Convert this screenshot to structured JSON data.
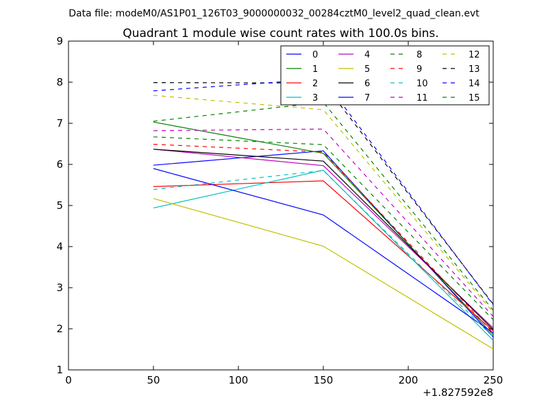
{
  "chart_data": {
    "type": "line",
    "suptitle": "Data file: modeM0/AS1P01_126T03_9000000032_00284cztM0_level2_quad_clean.evt",
    "title": "Quadrant 1 module wise count rates with 100.0s bins.",
    "xlabel": "",
    "ylabel": "",
    "x_offset_label": "+1.827592e8",
    "xlim": [
      0,
      250
    ],
    "ylim": [
      1,
      9
    ],
    "xticks": [
      "0",
      "50",
      "100",
      "150",
      "200",
      "250"
    ],
    "yticks": [
      "1",
      "2",
      "3",
      "4",
      "5",
      "6",
      "7",
      "8",
      "9"
    ],
    "x": [
      50,
      150,
      250
    ],
    "series": [
      {
        "name": "0",
        "color": "#0000ff",
        "dash": "solid",
        "values": [
          5.98,
          6.33,
          1.8
        ]
      },
      {
        "name": "1",
        "color": "#008000",
        "dash": "solid",
        "values": [
          7.03,
          6.27,
          1.85
        ]
      },
      {
        "name": "2",
        "color": "#ff0000",
        "dash": "solid",
        "values": [
          5.46,
          5.6,
          1.95
        ]
      },
      {
        "name": "3",
        "color": "#00bfbf",
        "dash": "solid",
        "values": [
          4.94,
          5.86,
          1.72
        ]
      },
      {
        "name": "4",
        "color": "#bf00bf",
        "dash": "solid",
        "values": [
          6.37,
          5.97,
          2.02
        ]
      },
      {
        "name": "5",
        "color": "#bfbf00",
        "dash": "solid",
        "values": [
          5.17,
          4.01,
          1.51
        ]
      },
      {
        "name": "6",
        "color": "#000000",
        "dash": "solid",
        "values": [
          6.37,
          6.08,
          1.98
        ]
      },
      {
        "name": "7",
        "color": "#0000ff",
        "dash": "solid",
        "values": [
          5.9,
          4.77,
          1.9
        ]
      },
      {
        "name": "8",
        "color": "#008000",
        "dash": "dashed",
        "values": [
          6.67,
          6.48,
          2.22
        ]
      },
      {
        "name": "9",
        "color": "#ff0000",
        "dash": "dashed",
        "values": [
          6.49,
          6.3,
          1.9
        ]
      },
      {
        "name": "10",
        "color": "#00bfbf",
        "dash": "dashed",
        "values": [
          5.39,
          5.85,
          1.8
        ]
      },
      {
        "name": "11",
        "color": "#bf00bf",
        "dash": "dashed",
        "values": [
          6.82,
          6.86,
          2.3
        ]
      },
      {
        "name": "12",
        "color": "#bfbf00",
        "dash": "dashed",
        "values": [
          7.68,
          7.33,
          2.4
        ]
      },
      {
        "name": "13",
        "color": "#000000",
        "dash": "dashed",
        "values": [
          7.99,
          7.98,
          2.6
        ]
      },
      {
        "name": "14",
        "color": "#0000ff",
        "dash": "dashed",
        "values": [
          7.79,
          8.08,
          2.58
        ]
      },
      {
        "name": "15",
        "color": "#008000",
        "dash": "dashed",
        "values": [
          7.05,
          7.51,
          2.45
        ]
      }
    ],
    "legend": {
      "position": "top-right",
      "columns": 4
    },
    "grid": false
  }
}
